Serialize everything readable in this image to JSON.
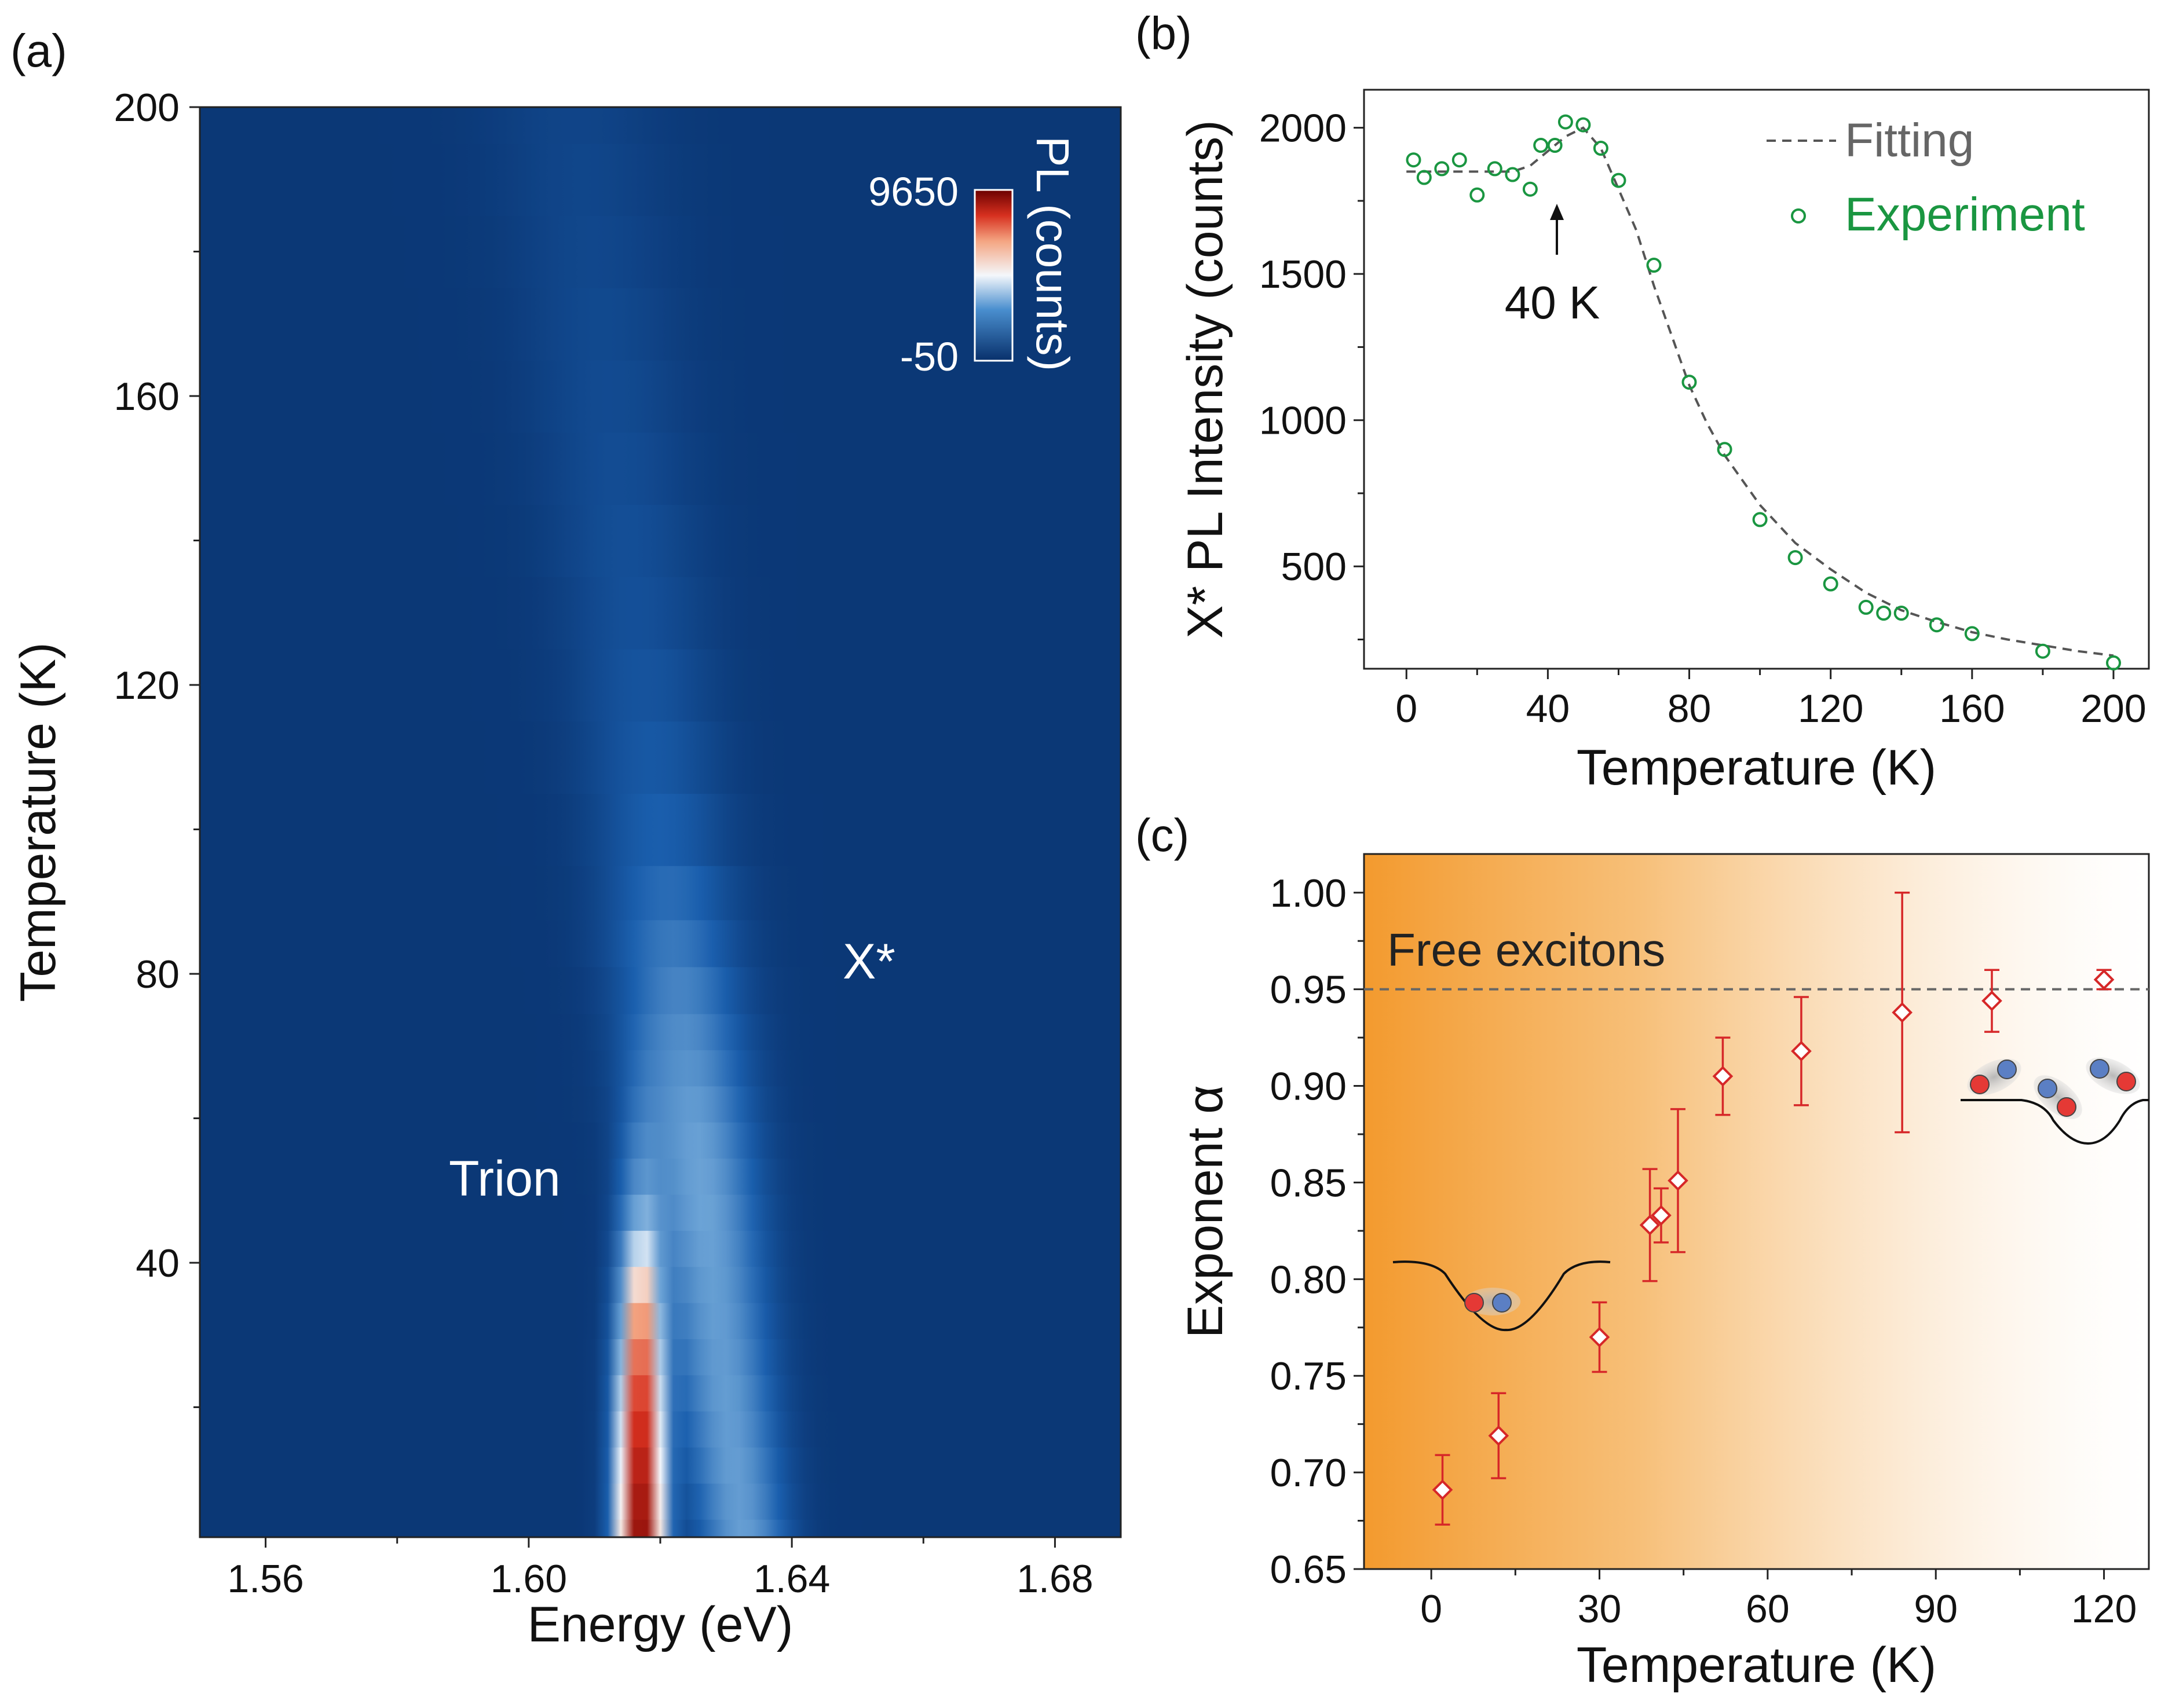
{
  "colors": {
    "heat_low": "#08306b",
    "heat_mid": "#1a5fae",
    "heat_white": "#f4f7fb",
    "heat_red": "#d7301f",
    "heat_max": "#6b0000",
    "experiment": "#1a9641",
    "fitting": "#555555",
    "diamond": "#d62728",
    "orange": "#f39a2e"
  },
  "chart_data": [
    {
      "panel": "(a)",
      "type": "heatmap",
      "xlabel": "Energy (eV)",
      "ylabel": "Temperature (K)",
      "xlim": [
        1.55,
        1.69
      ],
      "ylim": [
        2,
        200
      ],
      "xticks": [
        "1.56",
        "1.60",
        "1.64",
        "1.68"
      ],
      "xtick_values": [
        1.56,
        1.6,
        1.64,
        1.68
      ],
      "yticks": [
        "40",
        "80",
        "120",
        "160",
        "200"
      ],
      "ytick_values": [
        40,
        80,
        120,
        160,
        200
      ],
      "annotations": {
        "trion": "Trion",
        "xstar": "X*"
      },
      "colorbar": {
        "label": "PL (counts)",
        "max_label": "9650",
        "min_label": "-50",
        "max": 9650,
        "min": -50
      },
      "temperatures": [
        2,
        7,
        12,
        17,
        22,
        27,
        32,
        37,
        42,
        47,
        52,
        57,
        62,
        67,
        72,
        77,
        85,
        90,
        100,
        110,
        120,
        130,
        140,
        150,
        160,
        170,
        180,
        190,
        200
      ],
      "trion_peak": {
        "center_eV": 1.617,
        "width_eV": 0.0032,
        "amplitude": [
          9650,
          9300,
          8800,
          8200,
          7500,
          6600,
          5600,
          4500,
          3300,
          2300,
          1500,
          1000,
          600,
          350,
          150,
          0,
          0,
          0,
          0,
          0,
          0,
          0,
          0,
          0,
          0,
          0,
          0,
          0,
          0
        ]
      },
      "xstar_peak": {
        "center_at_2K_eV": 1.6325,
        "center_at_200K_eV": 1.607,
        "width_at_2K_eV": 0.006,
        "width_at_200K_eV": 0.012,
        "amplitude": [
          1900,
          1850,
          1880,
          1850,
          1860,
          1850,
          1870,
          1900,
          1950,
          2000,
          1980,
          1930,
          1820,
          1650,
          1530,
          1350,
          1130,
          900,
          660,
          530,
          440,
          360,
          340,
          300,
          270,
          240,
          210,
          190,
          170
        ]
      }
    },
    {
      "panel": "(b)",
      "type": "scatter",
      "xlabel": "Temperature (K)",
      "ylabel": "X* PL Intensity (counts)",
      "xlim": [
        -12,
        210
      ],
      "ylim": [
        150,
        2130
      ],
      "xticks": [
        "0",
        "40",
        "80",
        "120",
        "160",
        "200"
      ],
      "xtick_values": [
        0,
        40,
        80,
        120,
        160,
        200
      ],
      "yticks": [
        "500",
        "1000",
        "1500",
        "2000"
      ],
      "ytick_values": [
        500,
        1000,
        1500,
        2000
      ],
      "legend": {
        "position": "top-right",
        "fitting": "Fitting",
        "experiment": "Experiment"
      },
      "annotation": "40 K",
      "annotation_x": 40,
      "experiment": {
        "x": [
          2,
          5,
          10,
          15,
          20,
          25,
          30,
          35,
          38,
          42,
          45,
          50,
          55,
          60,
          70,
          80,
          90,
          100,
          110,
          120,
          130,
          135,
          140,
          150,
          160,
          180,
          200
        ],
        "y": [
          1890,
          1830,
          1860,
          1890,
          1770,
          1860,
          1840,
          1790,
          1940,
          1940,
          2020,
          2010,
          1930,
          1820,
          1530,
          1130,
          900,
          660,
          530,
          440,
          360,
          340,
          340,
          300,
          270,
          210,
          170
        ]
      },
      "fitting": {
        "x": [
          0,
          10,
          20,
          30,
          35,
          40,
          45,
          50,
          55,
          60,
          65,
          70,
          75,
          80,
          85,
          90,
          100,
          110,
          120,
          130,
          140,
          150,
          160,
          170,
          180,
          190,
          200
        ],
        "y": [
          1850,
          1850,
          1850,
          1850,
          1870,
          1920,
          1970,
          2000,
          1930,
          1790,
          1650,
          1460,
          1290,
          1120,
          990,
          880,
          710,
          580,
          490,
          410,
          350,
          310,
          275,
          250,
          230,
          210,
          195
        ]
      }
    },
    {
      "panel": "(c)",
      "type": "scatter",
      "xlabel": "Temperature (K)",
      "ylabel": "Exponent α",
      "xlim": [
        -12,
        128
      ],
      "ylim": [
        0.65,
        1.02
      ],
      "xticks": [
        "0",
        "30",
        "60",
        "90",
        "120"
      ],
      "xtick_values": [
        0,
        30,
        60,
        90,
        120
      ],
      "yticks": [
        "0.65",
        "0.70",
        "0.75",
        "0.80",
        "0.85",
        "0.90",
        "0.95",
        "1.00"
      ],
      "ytick_values": [
        0.65,
        0.7,
        0.75,
        0.8,
        0.85,
        0.9,
        0.95,
        1.0
      ],
      "reference_line": {
        "y": 0.95,
        "label": "Free excitons"
      },
      "points": {
        "x": [
          2,
          12,
          30,
          39,
          41,
          44,
          52,
          66,
          84,
          100,
          120
        ],
        "y": [
          0.691,
          0.719,
          0.77,
          0.828,
          0.833,
          0.851,
          0.905,
          0.918,
          0.938,
          0.944,
          0.955
        ],
        "err": [
          0.018,
          0.022,
          0.018,
          0.029,
          0.014,
          0.037,
          0.02,
          0.028,
          0.062,
          0.016,
          0.005
        ]
      }
    }
  ]
}
